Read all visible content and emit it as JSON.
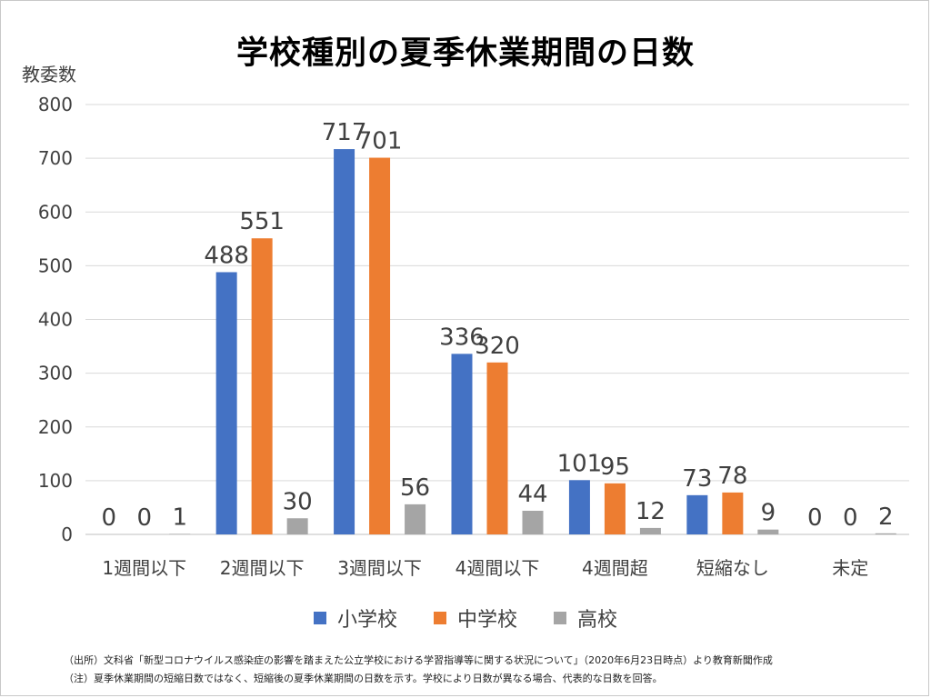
{
  "title": "学校種別の夏季休業期間の日数",
  "unit_label": "教委数",
  "colors": {
    "elementary": "#4472C4",
    "middle": "#ED7D31",
    "high": "#A5A5A5"
  },
  "notes": [
    "（出所）文科省「新型コロナウイルス感染症の影響を踏まえた公立学校における学習指導等に関する状況について」（2020年6月23日時点）より教育新聞作成",
    "（注）夏季休業期間の短縮日数ではなく、短縮後の夏季休業期間の日数を示す。学校により日数が異なる場合、代表的な日数を回答。"
  ],
  "chart_data": {
    "type": "bar",
    "title": "学校種別の夏季休業期間の日数",
    "ylabel": "教委数",
    "ylim": [
      0,
      800
    ],
    "yticks": [
      0,
      100,
      200,
      300,
      400,
      500,
      600,
      700,
      800
    ],
    "grid": true,
    "legend_position": "bottom",
    "categories": [
      "1週間以下",
      "2週間以下",
      "3週間以下",
      "4週間以下",
      "4週間超",
      "短縮なし",
      "未定"
    ],
    "series": [
      {
        "name": "小学校",
        "color": "#4472C4",
        "values": [
          0,
          488,
          717,
          336,
          101,
          73,
          0
        ]
      },
      {
        "name": "中学校",
        "color": "#ED7D31",
        "values": [
          0,
          551,
          701,
          320,
          95,
          78,
          0
        ]
      },
      {
        "name": "高校",
        "color": "#A5A5A5",
        "values": [
          1,
          30,
          56,
          44,
          12,
          9,
          2
        ]
      }
    ]
  }
}
